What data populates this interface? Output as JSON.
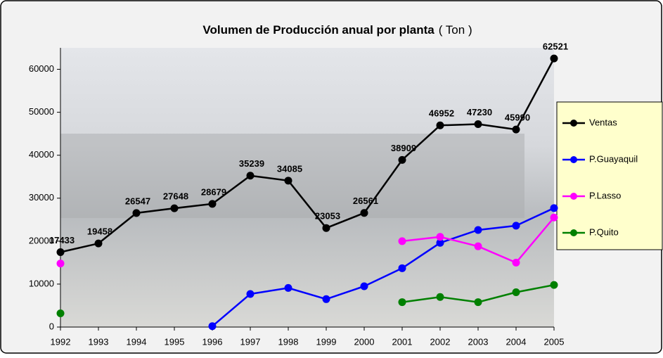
{
  "chart_data": {
    "type": "line",
    "title": "Volumen de Producción anual por planta",
    "subtitle": "( Ton )",
    "categories": [
      "1992",
      "1993",
      "1994",
      "1995",
      "1996",
      "1997",
      "1998",
      "1999",
      "2000",
      "2001",
      "2002",
      "2003",
      "2004",
      "2005"
    ],
    "series": [
      {
        "name": "Ventas",
        "color": "#000000",
        "values": [
          17433,
          19458,
          26547,
          27648,
          28679,
          35239,
          34085,
          23053,
          26561,
          38909,
          46952,
          47230,
          45990,
          62521
        ]
      },
      {
        "name": "P.Guayaquil",
        "color": "#0000ff",
        "values": [
          null,
          null,
          null,
          null,
          200,
          7700,
          9100,
          6500,
          9500,
          13700,
          19600,
          22600,
          23600,
          27700
        ]
      },
      {
        "name": "P.Lasso",
        "color": "#ff00ff",
        "values": [
          14800,
          null,
          null,
          null,
          null,
          null,
          null,
          null,
          null,
          20000,
          21000,
          18800,
          15000,
          25500
        ]
      },
      {
        "name": "P.Quito",
        "color": "#008000",
        "values": [
          3200,
          null,
          null,
          null,
          null,
          null,
          null,
          null,
          null,
          5800,
          7000,
          5800,
          8100,
          9800
        ]
      }
    ],
    "data_labels_series": 0,
    "ylim": [
      0,
      65000
    ],
    "yticks": [
      0,
      10000,
      20000,
      30000,
      40000,
      50000,
      60000
    ],
    "legend": "right"
  }
}
